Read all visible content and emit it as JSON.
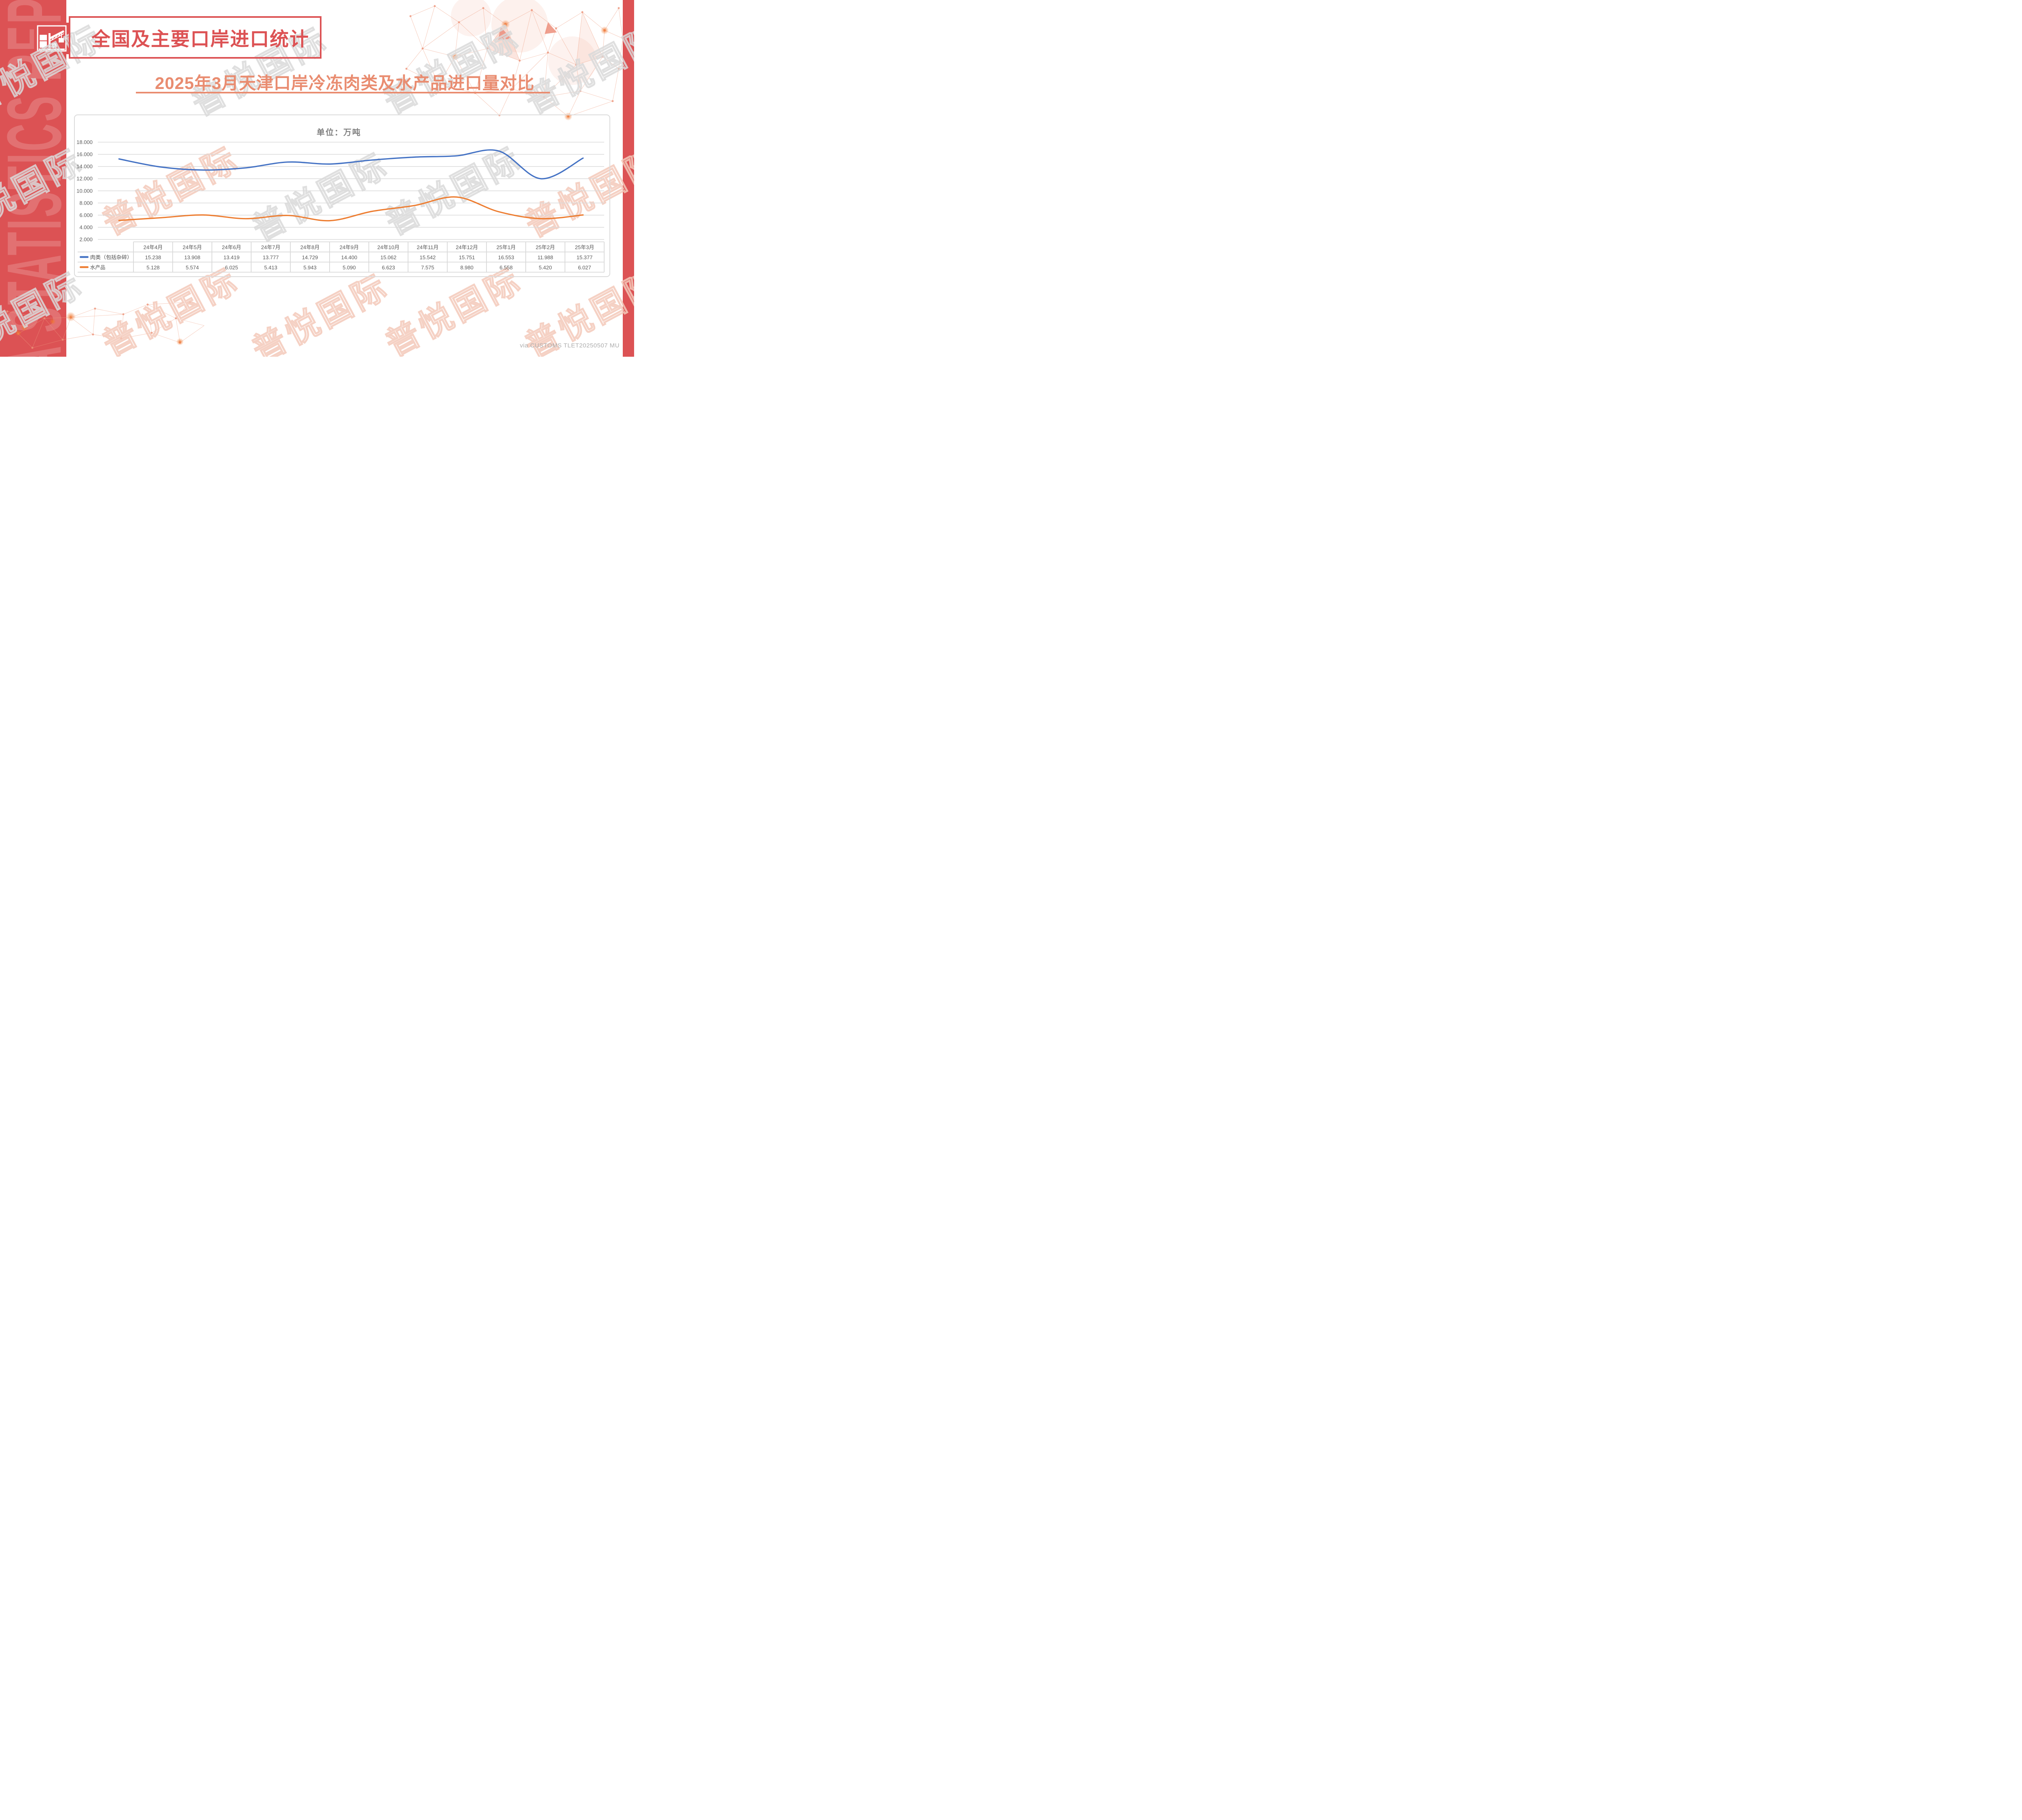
{
  "colors": {
    "accent_red": "#DC5254",
    "salmon": "#E98C70",
    "series_blue": "#4472C4",
    "series_orange": "#ED7D31",
    "grid": "#D9D9D9",
    "axis_text": "#595959",
    "legend_text": "#4A4A4A",
    "unit_text": "#7F7F7F",
    "footer_text": "#ADADAD",
    "watermark_gray": "#DADADA",
    "watermark_coral": "#F4C9BA"
  },
  "sidebar": {
    "vertical_text": "DATA STATISTICS REPORT"
  },
  "header": {
    "title": "全国及主要口岸进口统计",
    "icon": "port-crane-icon",
    "subtitle": "2025年3月天津口岸冷冻肉类及水产品进口量对比"
  },
  "watermark": {
    "text": "普悦国际"
  },
  "footer": {
    "credit": "via CUSTOMS TLET20250507 MU"
  },
  "chart_data": {
    "type": "line",
    "smooth": true,
    "grid": true,
    "title": "单位：万吨",
    "unit": "万吨",
    "categories": [
      "24年4月",
      "24年5月",
      "24年6月",
      "24年7月",
      "24年8月",
      "24年9月",
      "24年10月",
      "24年11月",
      "24年12月",
      "25年1月",
      "25年2月",
      "25年3月"
    ],
    "series": [
      {
        "name": "肉类（包括杂碎）",
        "color": "#4472C4",
        "values": [
          15.238,
          13.908,
          13.419,
          13.777,
          14.729,
          14.4,
          15.062,
          15.542,
          15.751,
          16.553,
          11.988,
          15.377
        ]
      },
      {
        "name": "水产品",
        "color": "#ED7D31",
        "values": [
          5.128,
          5.574,
          6.025,
          5.413,
          5.943,
          5.09,
          6.623,
          7.575,
          8.98,
          6.558,
          5.42,
          6.027
        ]
      }
    ],
    "ylim": [
      2,
      18
    ],
    "ytick_step": 2,
    "value_decimals": 3,
    "legend_position": "table-left",
    "data_table": true
  }
}
